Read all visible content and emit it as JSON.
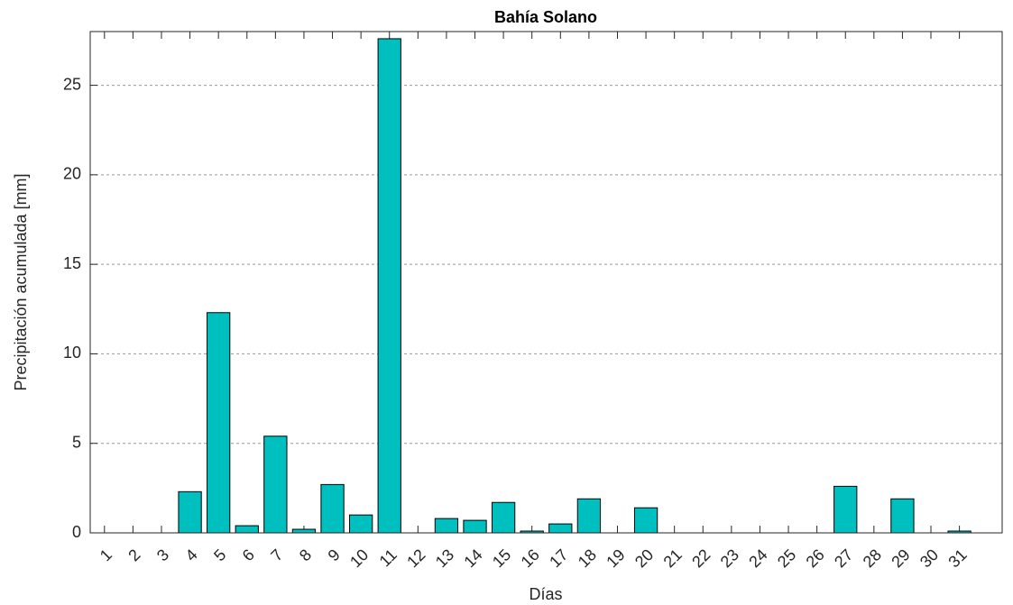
{
  "chart_data": {
    "type": "bar",
    "title": "Bahía Solano",
    "x_label": "Días",
    "y_label": "Precipitación acumulada [mm]",
    "x": [
      1,
      2,
      3,
      4,
      5,
      6,
      7,
      8,
      9,
      10,
      11,
      12,
      13,
      14,
      15,
      16,
      17,
      18,
      19,
      20,
      21,
      22,
      23,
      24,
      25,
      26,
      27,
      28,
      29,
      30,
      31
    ],
    "values": [
      0,
      0,
      0,
      2.3,
      12.3,
      0.4,
      5.4,
      0.2,
      2.7,
      1.0,
      27.6,
      0,
      0.8,
      0.7,
      1.7,
      0.1,
      0.5,
      1.9,
      0,
      1.4,
      0,
      0,
      0,
      0,
      0,
      0,
      2.6,
      0,
      1.9,
      0,
      0.1
    ],
    "color": "#00bfbf",
    "xlim": [
      0.5,
      32.5
    ],
    "xticks": [
      1,
      2,
      3,
      4,
      5,
      6,
      7,
      8,
      9,
      10,
      11,
      12,
      13,
      14,
      15,
      16,
      17,
      18,
      19,
      20,
      21,
      22,
      23,
      24,
      25,
      26,
      27,
      28,
      29,
      30,
      31
    ],
    "ylim": [
      0,
      28
    ],
    "yticks": [
      0,
      5,
      10,
      15,
      20,
      25
    ],
    "grid": true
  }
}
